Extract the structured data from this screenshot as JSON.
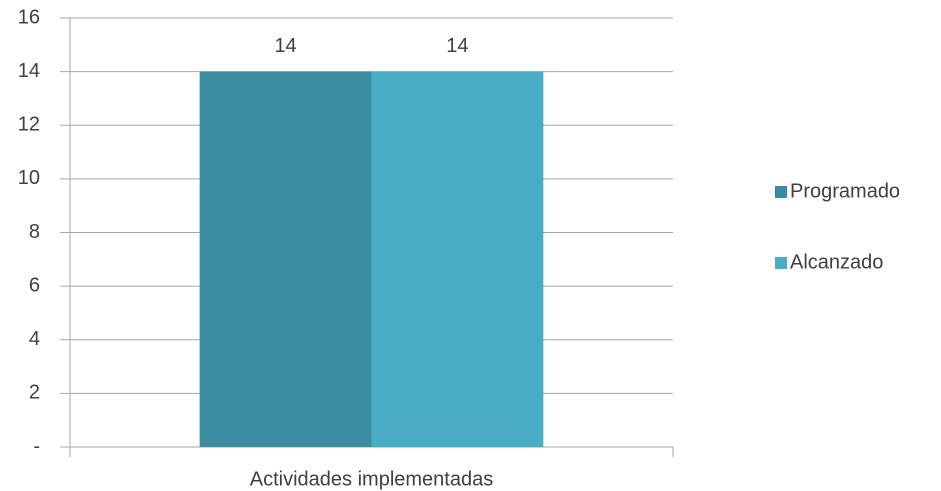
{
  "chart_data": {
    "type": "bar",
    "categories": [
      "Actividades implementadas"
    ],
    "series": [
      {
        "name": "Programado",
        "color": "#3b8ba1",
        "values": [
          14
        ]
      },
      {
        "name": "Alcanzado",
        "color": "#4bacc6",
        "values": [
          14
        ]
      }
    ],
    "ylim": [
      0,
      16
    ],
    "yticks": [
      {
        "value": 0,
        "label": "-"
      },
      2,
      4,
      6,
      8,
      10,
      12,
      14,
      16
    ],
    "grid": true,
    "legend": "right"
  }
}
